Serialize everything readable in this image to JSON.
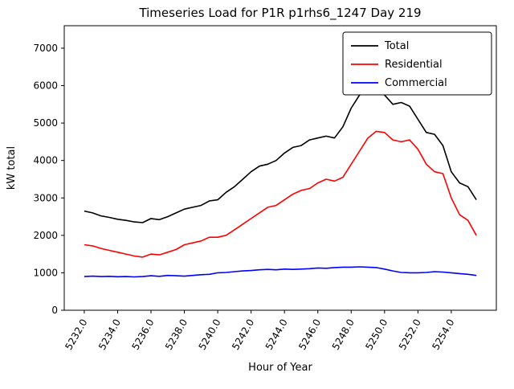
{
  "chart_data": {
    "type": "line",
    "title": "Timeseries Load for P1R p1rhs6_1247  Day 219",
    "xlabel": "Hour of Year",
    "ylabel": "kW total",
    "xlim": [
      5230.8,
      5256.7
    ],
    "ylim": [
      0,
      7600
    ],
    "grid": false,
    "x_ticks": [
      {
        "value": 5232,
        "label": "5232.0"
      },
      {
        "value": 5234,
        "label": "5234.0"
      },
      {
        "value": 5236,
        "label": "5236.0"
      },
      {
        "value": 5238,
        "label": "5238.0"
      },
      {
        "value": 5240,
        "label": "5240.0"
      },
      {
        "value": 5242,
        "label": "5242.0"
      },
      {
        "value": 5244,
        "label": "5244.0"
      },
      {
        "value": 5246,
        "label": "5246.0"
      },
      {
        "value": 5248,
        "label": "5248.0"
      },
      {
        "value": 5250,
        "label": "5250.0"
      },
      {
        "value": 5252,
        "label": "5252.0"
      },
      {
        "value": 5254,
        "label": "5254.0"
      }
    ],
    "y_ticks": [
      {
        "value": 0,
        "label": "0"
      },
      {
        "value": 1000,
        "label": "1000"
      },
      {
        "value": 2000,
        "label": "2000"
      },
      {
        "value": 3000,
        "label": "3000"
      },
      {
        "value": 4000,
        "label": "4000"
      },
      {
        "value": 5000,
        "label": "5000"
      },
      {
        "value": 6000,
        "label": "6000"
      },
      {
        "value": 7000,
        "label": "7000"
      }
    ],
    "x": [
      5232.0,
      5232.5,
      5233.0,
      5233.5,
      5234.0,
      5234.5,
      5235.0,
      5235.5,
      5236.0,
      5236.5,
      5237.0,
      5237.5,
      5238.0,
      5238.5,
      5239.0,
      5239.5,
      5240.0,
      5240.5,
      5241.0,
      5241.5,
      5242.0,
      5242.5,
      5243.0,
      5243.5,
      5244.0,
      5244.5,
      5245.0,
      5245.5,
      5246.0,
      5246.5,
      5247.0,
      5247.5,
      5248.0,
      5248.5,
      5249.0,
      5249.5,
      5250.0,
      5250.5,
      5251.0,
      5251.5,
      5252.0,
      5252.5,
      5253.0,
      5253.5,
      5254.0,
      5254.5,
      5255.0,
      5255.5
    ],
    "series": [
      {
        "name": "Total",
        "color": "#000000",
        "values": [
          2650,
          2600,
          2520,
          2480,
          2430,
          2400,
          2360,
          2340,
          2450,
          2420,
          2500,
          2600,
          2700,
          2750,
          2800,
          2920,
          2950,
          3150,
          3300,
          3500,
          3700,
          3850,
          3900,
          4000,
          4200,
          4350,
          4400,
          4550,
          4600,
          4650,
          4600,
          4900,
          5400,
          5750,
          5900,
          5880,
          5750,
          5500,
          5550,
          5450,
          5100,
          4750,
          4700,
          4400,
          3700,
          3400,
          3300,
          2950
        ]
      },
      {
        "name": "Residential",
        "color": "#ff0000",
        "values": [
          1750,
          1720,
          1650,
          1600,
          1550,
          1500,
          1450,
          1420,
          1500,
          1480,
          1550,
          1620,
          1750,
          1800,
          1850,
          1950,
          1950,
          2000,
          2150,
          2300,
          2450,
          2600,
          2750,
          2800,
          2950,
          3100,
          3200,
          3250,
          3400,
          3500,
          3450,
          3550,
          3900,
          4250,
          4600,
          4780,
          4750,
          4550,
          4500,
          4550,
          4300,
          3900,
          3700,
          3650,
          3000,
          2550,
          2400,
          2000
        ]
      },
      {
        "name": "Commercial",
        "color": "#0000ff",
        "values": [
          900,
          910,
          900,
          905,
          895,
          900,
          890,
          900,
          920,
          905,
          930,
          920,
          910,
          930,
          950,
          960,
          1000,
          1010,
          1030,
          1050,
          1060,
          1080,
          1090,
          1080,
          1100,
          1090,
          1100,
          1110,
          1130,
          1120,
          1140,
          1150,
          1150,
          1160,
          1150,
          1140,
          1100,
          1050,
          1010,
          1000,
          1000,
          1010,
          1030,
          1020,
          1000,
          980,
          960,
          930
        ]
      }
    ],
    "legend": {
      "position": "upper right",
      "entries": [
        {
          "label": "Total",
          "color": "#000000"
        },
        {
          "label": "Residential",
          "color": "#ff0000"
        },
        {
          "label": "Commercial",
          "color": "#0000ff"
        }
      ]
    }
  }
}
